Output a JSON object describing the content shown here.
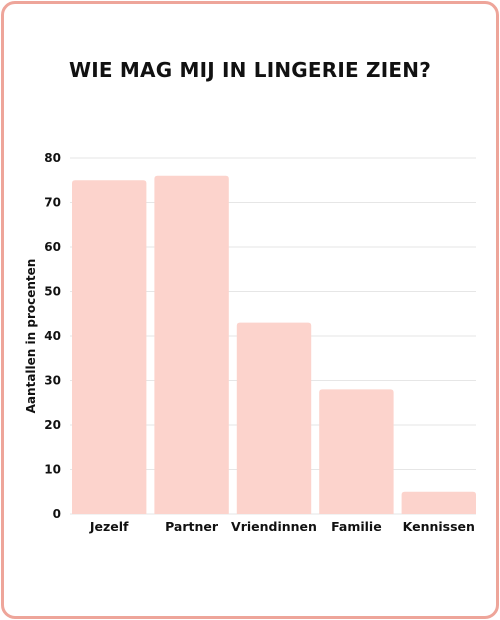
{
  "chart_data": {
    "type": "bar",
    "title": "WIE MAG MIJ IN LINGERIE ZIEN?",
    "xlabel": "",
    "ylabel": "Aantallen in procenten",
    "categories": [
      "Jezelf",
      "Partner",
      "Vriendinnen",
      "Familie",
      "Kennissen"
    ],
    "values": [
      75,
      76,
      43,
      28,
      5
    ],
    "ylim": [
      0,
      80
    ],
    "yticks": [
      "0",
      "10",
      "20",
      "30",
      "40",
      "50",
      "60",
      "70",
      "80"
    ],
    "grid": true,
    "legend": "none"
  },
  "colors": {
    "bar": "#fcd3cc",
    "frame": "#eea59a",
    "grid": "#e6e6e6",
    "text": "#111111"
  }
}
